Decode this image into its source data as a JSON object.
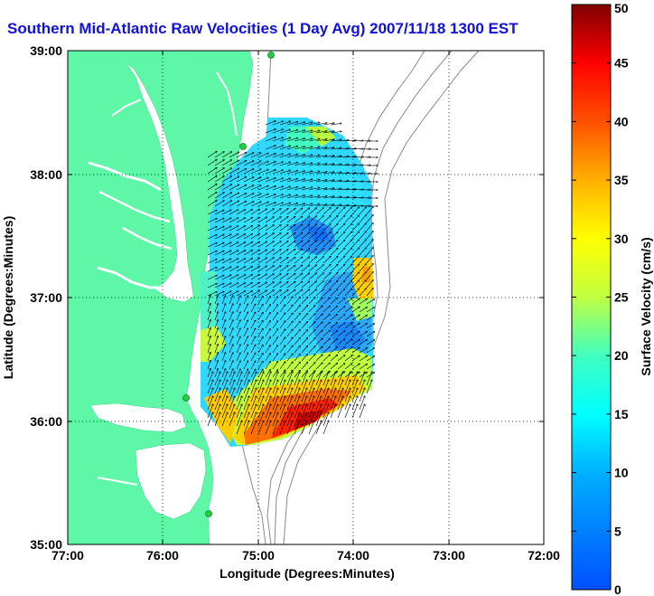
{
  "title": "Southern Mid-Atlantic Raw Velocities (1 Day Avg) 2007/11/18 1300 EST",
  "x_axis": {
    "label": "Longitude (Degrees:Minutes)",
    "ticks": [
      "77:00",
      "76:00",
      "75:00",
      "74:00",
      "73:00",
      "72:00"
    ]
  },
  "y_axis": {
    "label": "Latitude (Degrees:Minutes)",
    "ticks": [
      "39:00",
      "38:00",
      "37:00",
      "36:00",
      "35:00"
    ]
  },
  "colorbar": {
    "label": "Surface Velocity (cm/s)",
    "ticks": [
      "50",
      "45",
      "40",
      "35",
      "30",
      "25",
      "20",
      "15",
      "10",
      "5",
      "0"
    ],
    "min": 0,
    "max": 50
  },
  "colors": {
    "land": "#5ef7a8",
    "ocean": "#ffffff",
    "title": "#1010e0",
    "bathymetry": "#8a8a8a",
    "station": "#22cc44"
  }
}
